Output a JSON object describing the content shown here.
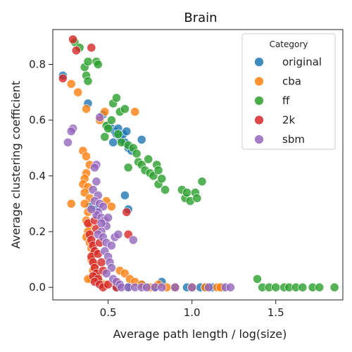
{
  "chart_data": {
    "type": "scatter",
    "title": "Brain",
    "xlabel": "Average path length / log(size)",
    "ylabel": "Average clustering coefficient",
    "xlim": [
      0.17,
      1.9
    ],
    "ylim": [
      -0.045,
      0.925
    ],
    "xticks": [
      {
        "value": 0.5,
        "label": "0.5"
      },
      {
        "value": 1.0,
        "label": "1.0"
      },
      {
        "value": 1.5,
        "label": "1.5"
      }
    ],
    "yticks": [
      {
        "value": 0.0,
        "label": "0.0"
      },
      {
        "value": 0.2,
        "label": "0.2"
      },
      {
        "value": 0.4,
        "label": "0.4"
      },
      {
        "value": 0.6,
        "label": "0.6"
      },
      {
        "value": 0.8,
        "label": "0.8"
      }
    ],
    "grid": false,
    "legend": {
      "title": "Category",
      "position": "top-right"
    },
    "series": [
      {
        "name": "original",
        "color": "#1f77b4",
        "points": [
          [
            0.23,
            0.76
          ],
          [
            0.38,
            0.66
          ],
          [
            0.47,
            0.62
          ],
          [
            0.5,
            0.58
          ],
          [
            0.52,
            0.57
          ],
          [
            0.54,
            0.56
          ],
          [
            0.55,
            0.55
          ],
          [
            0.56,
            0.57
          ],
          [
            0.57,
            0.54
          ],
          [
            0.58,
            0.53
          ],
          [
            0.59,
            0.55
          ],
          [
            0.6,
            0.52
          ],
          [
            0.61,
            0.56
          ],
          [
            0.53,
            0.52
          ],
          [
            0.62,
            0.5
          ],
          [
            0.64,
            0.49
          ],
          [
            0.7,
            0.53
          ],
          [
            0.6,
            0.33
          ],
          [
            0.62,
            0.28
          ],
          [
            0.39,
            0.29
          ],
          [
            0.43,
            0.28
          ],
          [
            0.55,
            0.0
          ],
          [
            0.62,
            0.0
          ],
          [
            0.7,
            0.01
          ],
          [
            0.78,
            0.0
          ],
          [
            0.82,
            0.02
          ],
          [
            0.9,
            0.0
          ],
          [
            0.97,
            0.0
          ],
          [
            1.0,
            0.0
          ],
          [
            1.05,
            0.0
          ],
          [
            1.08,
            0.0
          ],
          [
            1.12,
            0.0
          ],
          [
            1.18,
            0.0
          ]
        ]
      },
      {
        "name": "cba",
        "color": "#ff7f0e",
        "points": [
          [
            0.28,
            0.73
          ],
          [
            0.32,
            0.7
          ],
          [
            0.37,
            0.64
          ],
          [
            0.45,
            0.6
          ],
          [
            0.48,
            0.63
          ],
          [
            0.66,
            0.63
          ],
          [
            0.35,
            0.49
          ],
          [
            0.37,
            0.47
          ],
          [
            0.39,
            0.44
          ],
          [
            0.37,
            0.41
          ],
          [
            0.36,
            0.39
          ],
          [
            0.35,
            0.37
          ],
          [
            0.38,
            0.36
          ],
          [
            0.36,
            0.34
          ],
          [
            0.39,
            0.32
          ],
          [
            0.36,
            0.3
          ],
          [
            0.28,
            0.3
          ],
          [
            0.38,
            0.27
          ],
          [
            0.37,
            0.24
          ],
          [
            0.39,
            0.22
          ],
          [
            0.38,
            0.2
          ],
          [
            0.37,
            0.18
          ],
          [
            0.39,
            0.16
          ],
          [
            0.4,
            0.14
          ],
          [
            0.41,
            0.12
          ],
          [
            0.4,
            0.1
          ],
          [
            0.42,
            0.08
          ],
          [
            0.41,
            0.06
          ],
          [
            0.44,
            0.04
          ],
          [
            0.4,
            0.03
          ],
          [
            0.38,
            0.03
          ],
          [
            0.45,
            0.02
          ],
          [
            0.48,
            0.01
          ],
          [
            0.55,
            0.02
          ],
          [
            0.57,
            0.06
          ],
          [
            0.6,
            0.05
          ],
          [
            0.63,
            0.03
          ],
          [
            0.66,
            0.02
          ],
          [
            0.7,
            0.01
          ],
          [
            0.75,
            0.0
          ],
          [
            0.8,
            0.01
          ],
          [
            0.85,
            0.0
          ],
          [
            0.9,
            0.0
          ],
          [
            1.0,
            0.0
          ],
          [
            1.08,
            0.0
          ],
          [
            1.15,
            0.0
          ],
          [
            1.17,
            0.0
          ],
          [
            0.49,
            0.31
          ],
          [
            0.52,
            0.29
          ]
        ]
      },
      {
        "name": "ff",
        "color": "#2ca02c",
        "points": [
          [
            0.3,
            0.88
          ],
          [
            0.33,
            0.86
          ],
          [
            0.36,
            0.79
          ],
          [
            0.38,
            0.81
          ],
          [
            0.43,
            0.81
          ],
          [
            0.44,
            0.8
          ],
          [
            0.37,
            0.76
          ],
          [
            0.38,
            0.74
          ],
          [
            0.49,
            0.58
          ],
          [
            0.52,
            0.6
          ],
          [
            0.53,
            0.66
          ],
          [
            0.55,
            0.68
          ],
          [
            0.57,
            0.63
          ],
          [
            0.6,
            0.64
          ],
          [
            0.48,
            0.54
          ],
          [
            0.5,
            0.57
          ],
          [
            0.56,
            0.55
          ],
          [
            0.58,
            0.52
          ],
          [
            0.62,
            0.51
          ],
          [
            0.65,
            0.5
          ],
          [
            0.67,
            0.48
          ],
          [
            0.68,
            0.45
          ],
          [
            0.7,
            0.44
          ],
          [
            0.72,
            0.42
          ],
          [
            0.74,
            0.46
          ],
          [
            0.75,
            0.41
          ],
          [
            0.77,
            0.4
          ],
          [
            0.79,
            0.44
          ],
          [
            0.8,
            0.42
          ],
          [
            0.8,
            0.37
          ],
          [
            0.82,
            0.39
          ],
          [
            0.84,
            0.35
          ],
          [
            0.62,
            0.43
          ],
          [
            0.94,
            0.35
          ],
          [
            0.96,
            0.32
          ],
          [
            0.97,
            0.34
          ],
          [
            0.99,
            0.31
          ],
          [
            1.02,
            0.34
          ],
          [
            1.03,
            0.32
          ],
          [
            1.06,
            0.38
          ],
          [
            1.39,
            0.03
          ],
          [
            1.42,
            0.0
          ],
          [
            1.46,
            0.0
          ],
          [
            1.5,
            0.0
          ],
          [
            1.55,
            0.0
          ],
          [
            1.58,
            0.0
          ],
          [
            1.62,
            0.0
          ],
          [
            1.66,
            0.0
          ],
          [
            1.72,
            0.0
          ],
          [
            1.76,
            0.0
          ],
          [
            1.85,
            0.0
          ]
        ]
      },
      {
        "name": "2k",
        "color": "#d62728",
        "points": [
          [
            0.29,
            0.89
          ],
          [
            0.31,
            0.85
          ],
          [
            0.4,
            0.86
          ],
          [
            0.23,
            0.75
          ],
          [
            0.38,
            0.23
          ],
          [
            0.39,
            0.19
          ],
          [
            0.4,
            0.17
          ],
          [
            0.41,
            0.15
          ],
          [
            0.42,
            0.13
          ],
          [
            0.4,
            0.11
          ],
          [
            0.41,
            0.09
          ],
          [
            0.42,
            0.07
          ],
          [
            0.43,
            0.05
          ],
          [
            0.41,
            0.04
          ],
          [
            0.44,
            0.03
          ],
          [
            0.42,
            0.02
          ],
          [
            0.45,
            0.01
          ],
          [
            0.47,
            0.0
          ],
          [
            0.5,
            0.01
          ],
          [
            0.55,
            0.0
          ],
          [
            0.42,
            0.24
          ],
          [
            0.43,
            0.21
          ],
          [
            0.44,
            0.12
          ],
          [
            0.46,
            0.09
          ],
          [
            0.47,
            0.06
          ],
          [
            0.61,
            0.27
          ],
          [
            0.62,
            0.19
          ],
          [
            0.45,
            0.16
          ]
        ]
      },
      {
        "name": "sbm",
        "color": "#9467bd",
        "points": [
          [
            0.29,
            0.57
          ],
          [
            0.28,
            0.56
          ],
          [
            0.26,
            0.52
          ],
          [
            0.45,
            0.61
          ],
          [
            0.43,
            0.44
          ],
          [
            0.42,
            0.43
          ],
          [
            0.43,
            0.38
          ],
          [
            0.41,
            0.35
          ],
          [
            0.44,
            0.33
          ],
          [
            0.42,
            0.31
          ],
          [
            0.45,
            0.3
          ],
          [
            0.47,
            0.29
          ],
          [
            0.44,
            0.27
          ],
          [
            0.43,
            0.26
          ],
          [
            0.46,
            0.25
          ],
          [
            0.48,
            0.24
          ],
          [
            0.5,
            0.25
          ],
          [
            0.49,
            0.22
          ],
          [
            0.46,
            0.2
          ],
          [
            0.44,
            0.19
          ],
          [
            0.47,
            0.18
          ],
          [
            0.49,
            0.16
          ],
          [
            0.54,
            0.18
          ],
          [
            0.56,
            0.19
          ],
          [
            0.65,
            0.17
          ],
          [
            0.52,
            0.15
          ],
          [
            0.48,
            0.13
          ],
          [
            0.5,
            0.11
          ],
          [
            0.51,
            0.09
          ],
          [
            0.52,
            0.07
          ],
          [
            0.49,
            0.05
          ],
          [
            0.53,
            0.03
          ],
          [
            0.55,
            0.02
          ],
          [
            0.57,
            0.01
          ],
          [
            0.58,
            0.0
          ],
          [
            0.62,
            0.0
          ],
          [
            0.66,
            0.0
          ],
          [
            0.7,
            0.0
          ],
          [
            0.73,
            0.0
          ],
          [
            0.78,
            0.0
          ],
          [
            0.82,
            0.0
          ],
          [
            0.9,
            0.0
          ],
          [
            1.0,
            0.0
          ],
          [
            1.1,
            0.0
          ],
          [
            1.2,
            0.0
          ],
          [
            1.23,
            0.0
          ],
          [
            0.4,
            0.28
          ],
          [
            0.46,
            0.23
          ]
        ]
      }
    ]
  }
}
